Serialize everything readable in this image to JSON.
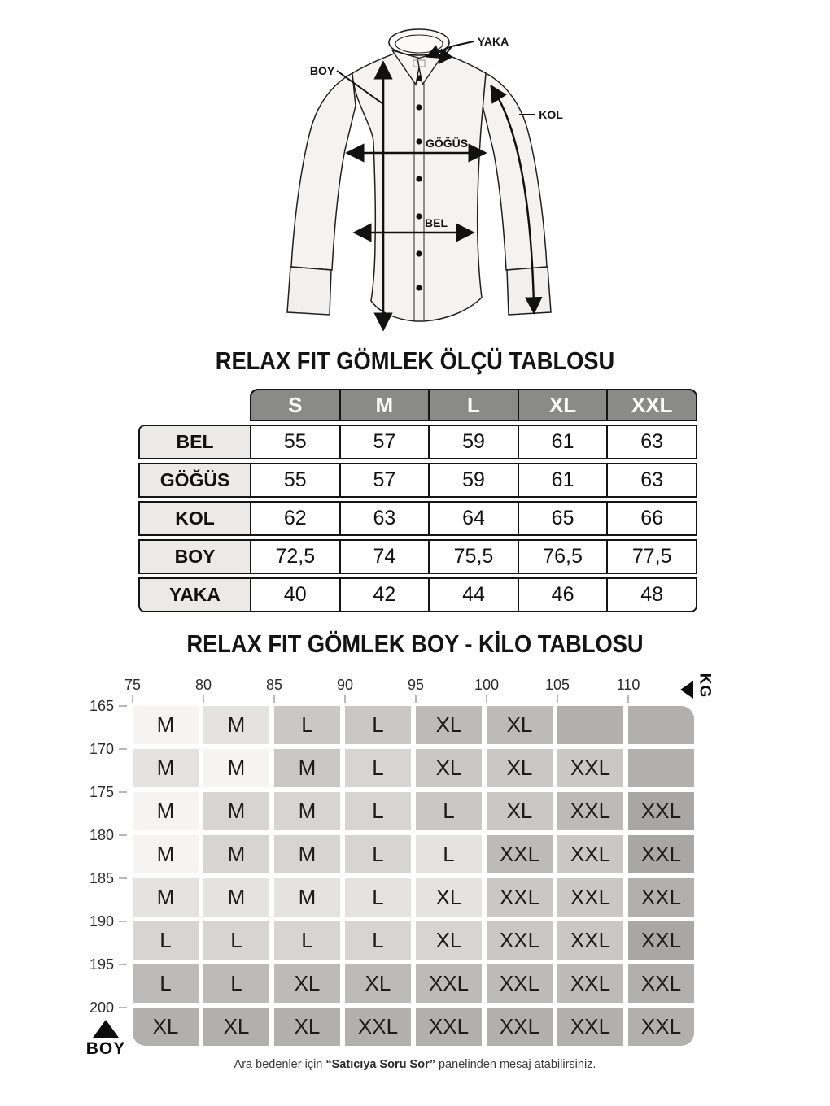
{
  "shirt_diagram": {
    "labels": {
      "yaka": "YAKA",
      "boy": "BOY",
      "kol": "KOL",
      "gogus": "GÖĞÜS",
      "bel": "BEL"
    }
  },
  "size_table": {
    "title": "RELAX FIT GÖMLEK ÖLÇÜ TABLOSU",
    "columns": [
      "S",
      "M",
      "L",
      "XL",
      "XXL"
    ],
    "rows": [
      {
        "label": "BEL",
        "values": [
          "55",
          "57",
          "59",
          "61",
          "63"
        ]
      },
      {
        "label": "GÖĞÜS",
        "values": [
          "55",
          "57",
          "59",
          "61",
          "63"
        ]
      },
      {
        "label": "KOL",
        "values": [
          "62",
          "63",
          "64",
          "65",
          "66"
        ]
      },
      {
        "label": "BOY",
        "values": [
          "72,5",
          "74",
          "75,5",
          "76,5",
          "77,5"
        ]
      },
      {
        "label": "YAKA",
        "values": [
          "40",
          "42",
          "44",
          "46",
          "48"
        ]
      }
    ]
  },
  "fit_chart": {
    "title": "RELAX FIT GÖMLEK BOY - KİLO TABLOSU",
    "kg_label": "KG",
    "boy_label": "BOY",
    "weights": [
      "75",
      "80",
      "85",
      "90",
      "95",
      "100",
      "105",
      "110"
    ],
    "heights": [
      "165",
      "170",
      "175",
      "180",
      "185",
      "190",
      "195",
      "200"
    ],
    "shade_palette": [
      "#f5f4f2",
      "#e4e3e1",
      "#d6d5d3",
      "#c9c8c6",
      "#bcbbb9",
      "#b1b0ae",
      "#a8a7a5"
    ],
    "cells": [
      [
        {
          "t": "M",
          "s": 0
        },
        {
          "t": "M",
          "s": 1
        },
        {
          "t": "L",
          "s": 3
        },
        {
          "t": "L",
          "s": 3
        },
        {
          "t": "XL",
          "s": 4
        },
        {
          "t": "XL",
          "s": 4
        },
        {
          "t": "",
          "s": 5
        },
        {
          "t": "",
          "s": 5
        }
      ],
      [
        {
          "t": "M",
          "s": 1
        },
        {
          "t": "M",
          "s": 0
        },
        {
          "t": "M",
          "s": 3
        },
        {
          "t": "L",
          "s": 2
        },
        {
          "t": "XL",
          "s": 3
        },
        {
          "t": "XL",
          "s": 3
        },
        {
          "t": "XXL",
          "s": 3
        },
        {
          "t": "",
          "s": 5
        }
      ],
      [
        {
          "t": "M",
          "s": 0
        },
        {
          "t": "M",
          "s": 2
        },
        {
          "t": "M",
          "s": 2
        },
        {
          "t": "L",
          "s": 2
        },
        {
          "t": "L",
          "s": 3
        },
        {
          "t": "XL",
          "s": 3
        },
        {
          "t": "XXL",
          "s": 4
        },
        {
          "t": "XXL",
          "s": 6
        }
      ],
      [
        {
          "t": "M",
          "s": 0
        },
        {
          "t": "M",
          "s": 2
        },
        {
          "t": "M",
          "s": 2
        },
        {
          "t": "L",
          "s": 2
        },
        {
          "t": "L",
          "s": 1
        },
        {
          "t": "XXL",
          "s": 4
        },
        {
          "t": "XXL",
          "s": 3
        },
        {
          "t": "XXL",
          "s": 6
        }
      ],
      [
        {
          "t": "M",
          "s": 1
        },
        {
          "t": "M",
          "s": 1
        },
        {
          "t": "M",
          "s": 1
        },
        {
          "t": "L",
          "s": 1
        },
        {
          "t": "XL",
          "s": 1
        },
        {
          "t": "XXL",
          "s": 3
        },
        {
          "t": "XXL",
          "s": 3
        },
        {
          "t": "XXL",
          "s": 5
        }
      ],
      [
        {
          "t": "L",
          "s": 2
        },
        {
          "t": "L",
          "s": 2
        },
        {
          "t": "L",
          "s": 2
        },
        {
          "t": "L",
          "s": 2
        },
        {
          "t": "XL",
          "s": 2
        },
        {
          "t": "XXL",
          "s": 3
        },
        {
          "t": "XXL",
          "s": 3
        },
        {
          "t": "XXL",
          "s": 6
        }
      ],
      [
        {
          "t": "L",
          "s": 4
        },
        {
          "t": "L",
          "s": 4
        },
        {
          "t": "XL",
          "s": 4
        },
        {
          "t": "XL",
          "s": 4
        },
        {
          "t": "XXL",
          "s": 4
        },
        {
          "t": "XXL",
          "s": 4
        },
        {
          "t": "XXL",
          "s": 4
        },
        {
          "t": "XXL",
          "s": 5
        }
      ],
      [
        {
          "t": "XL",
          "s": 5
        },
        {
          "t": "XL",
          "s": 5
        },
        {
          "t": "XL",
          "s": 5
        },
        {
          "t": "XXL",
          "s": 5
        },
        {
          "t": "XXL",
          "s": 5
        },
        {
          "t": "XXL",
          "s": 5
        },
        {
          "t": "XXL",
          "s": 5
        },
        {
          "t": "XXL",
          "s": 5
        }
      ]
    ]
  },
  "footer": {
    "prefix": "Ara bedenler için ",
    "bold": "“Satıcıya Soru Sor”",
    "suffix": " panelinden mesaj atabilirsiniz."
  },
  "colors": {
    "table_header_bg": "#8a8a88",
    "table_label_bg": "#eceae9",
    "border": "#141414",
    "shirt_fill": "#f4f3f1"
  }
}
